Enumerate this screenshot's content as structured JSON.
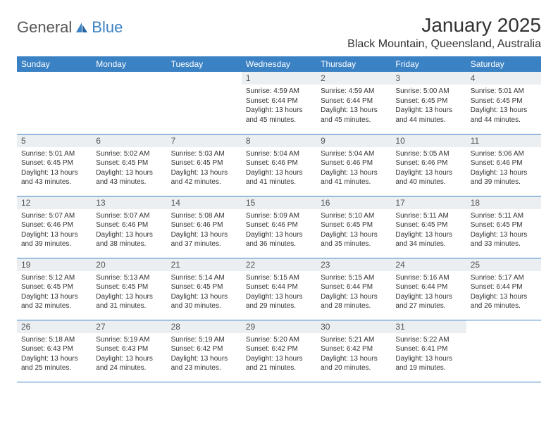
{
  "logo": {
    "text1": "General",
    "text2": "Blue"
  },
  "title": "January 2025",
  "location": "Black Mountain, Queensland, Australia",
  "colors": {
    "header_bg": "#3b82c4",
    "header_text": "#ffffff",
    "daynum_bg": "#eceff1",
    "border": "#3b82c4",
    "text": "#333333"
  },
  "day_headers": [
    "Sunday",
    "Monday",
    "Tuesday",
    "Wednesday",
    "Thursday",
    "Friday",
    "Saturday"
  ],
  "weeks": [
    [
      {
        "n": "",
        "sr": "",
        "ss": "",
        "dl": ""
      },
      {
        "n": "",
        "sr": "",
        "ss": "",
        "dl": ""
      },
      {
        "n": "",
        "sr": "",
        "ss": "",
        "dl": ""
      },
      {
        "n": "1",
        "sr": "Sunrise: 4:59 AM",
        "ss": "Sunset: 6:44 PM",
        "dl": "Daylight: 13 hours and 45 minutes."
      },
      {
        "n": "2",
        "sr": "Sunrise: 4:59 AM",
        "ss": "Sunset: 6:44 PM",
        "dl": "Daylight: 13 hours and 45 minutes."
      },
      {
        "n": "3",
        "sr": "Sunrise: 5:00 AM",
        "ss": "Sunset: 6:45 PM",
        "dl": "Daylight: 13 hours and 44 minutes."
      },
      {
        "n": "4",
        "sr": "Sunrise: 5:01 AM",
        "ss": "Sunset: 6:45 PM",
        "dl": "Daylight: 13 hours and 44 minutes."
      }
    ],
    [
      {
        "n": "5",
        "sr": "Sunrise: 5:01 AM",
        "ss": "Sunset: 6:45 PM",
        "dl": "Daylight: 13 hours and 43 minutes."
      },
      {
        "n": "6",
        "sr": "Sunrise: 5:02 AM",
        "ss": "Sunset: 6:45 PM",
        "dl": "Daylight: 13 hours and 43 minutes."
      },
      {
        "n": "7",
        "sr": "Sunrise: 5:03 AM",
        "ss": "Sunset: 6:45 PM",
        "dl": "Daylight: 13 hours and 42 minutes."
      },
      {
        "n": "8",
        "sr": "Sunrise: 5:04 AM",
        "ss": "Sunset: 6:46 PM",
        "dl": "Daylight: 13 hours and 41 minutes."
      },
      {
        "n": "9",
        "sr": "Sunrise: 5:04 AM",
        "ss": "Sunset: 6:46 PM",
        "dl": "Daylight: 13 hours and 41 minutes."
      },
      {
        "n": "10",
        "sr": "Sunrise: 5:05 AM",
        "ss": "Sunset: 6:46 PM",
        "dl": "Daylight: 13 hours and 40 minutes."
      },
      {
        "n": "11",
        "sr": "Sunrise: 5:06 AM",
        "ss": "Sunset: 6:46 PM",
        "dl": "Daylight: 13 hours and 39 minutes."
      }
    ],
    [
      {
        "n": "12",
        "sr": "Sunrise: 5:07 AM",
        "ss": "Sunset: 6:46 PM",
        "dl": "Daylight: 13 hours and 39 minutes."
      },
      {
        "n": "13",
        "sr": "Sunrise: 5:07 AM",
        "ss": "Sunset: 6:46 PM",
        "dl": "Daylight: 13 hours and 38 minutes."
      },
      {
        "n": "14",
        "sr": "Sunrise: 5:08 AM",
        "ss": "Sunset: 6:46 PM",
        "dl": "Daylight: 13 hours and 37 minutes."
      },
      {
        "n": "15",
        "sr": "Sunrise: 5:09 AM",
        "ss": "Sunset: 6:46 PM",
        "dl": "Daylight: 13 hours and 36 minutes."
      },
      {
        "n": "16",
        "sr": "Sunrise: 5:10 AM",
        "ss": "Sunset: 6:45 PM",
        "dl": "Daylight: 13 hours and 35 minutes."
      },
      {
        "n": "17",
        "sr": "Sunrise: 5:11 AM",
        "ss": "Sunset: 6:45 PM",
        "dl": "Daylight: 13 hours and 34 minutes."
      },
      {
        "n": "18",
        "sr": "Sunrise: 5:11 AM",
        "ss": "Sunset: 6:45 PM",
        "dl": "Daylight: 13 hours and 33 minutes."
      }
    ],
    [
      {
        "n": "19",
        "sr": "Sunrise: 5:12 AM",
        "ss": "Sunset: 6:45 PM",
        "dl": "Daylight: 13 hours and 32 minutes."
      },
      {
        "n": "20",
        "sr": "Sunrise: 5:13 AM",
        "ss": "Sunset: 6:45 PM",
        "dl": "Daylight: 13 hours and 31 minutes."
      },
      {
        "n": "21",
        "sr": "Sunrise: 5:14 AM",
        "ss": "Sunset: 6:45 PM",
        "dl": "Daylight: 13 hours and 30 minutes."
      },
      {
        "n": "22",
        "sr": "Sunrise: 5:15 AM",
        "ss": "Sunset: 6:44 PM",
        "dl": "Daylight: 13 hours and 29 minutes."
      },
      {
        "n": "23",
        "sr": "Sunrise: 5:15 AM",
        "ss": "Sunset: 6:44 PM",
        "dl": "Daylight: 13 hours and 28 minutes."
      },
      {
        "n": "24",
        "sr": "Sunrise: 5:16 AM",
        "ss": "Sunset: 6:44 PM",
        "dl": "Daylight: 13 hours and 27 minutes."
      },
      {
        "n": "25",
        "sr": "Sunrise: 5:17 AM",
        "ss": "Sunset: 6:44 PM",
        "dl": "Daylight: 13 hours and 26 minutes."
      }
    ],
    [
      {
        "n": "26",
        "sr": "Sunrise: 5:18 AM",
        "ss": "Sunset: 6:43 PM",
        "dl": "Daylight: 13 hours and 25 minutes."
      },
      {
        "n": "27",
        "sr": "Sunrise: 5:19 AM",
        "ss": "Sunset: 6:43 PM",
        "dl": "Daylight: 13 hours and 24 minutes."
      },
      {
        "n": "28",
        "sr": "Sunrise: 5:19 AM",
        "ss": "Sunset: 6:42 PM",
        "dl": "Daylight: 13 hours and 23 minutes."
      },
      {
        "n": "29",
        "sr": "Sunrise: 5:20 AM",
        "ss": "Sunset: 6:42 PM",
        "dl": "Daylight: 13 hours and 21 minutes."
      },
      {
        "n": "30",
        "sr": "Sunrise: 5:21 AM",
        "ss": "Sunset: 6:42 PM",
        "dl": "Daylight: 13 hours and 20 minutes."
      },
      {
        "n": "31",
        "sr": "Sunrise: 5:22 AM",
        "ss": "Sunset: 6:41 PM",
        "dl": "Daylight: 13 hours and 19 minutes."
      },
      {
        "n": "",
        "sr": "",
        "ss": "",
        "dl": ""
      }
    ]
  ]
}
